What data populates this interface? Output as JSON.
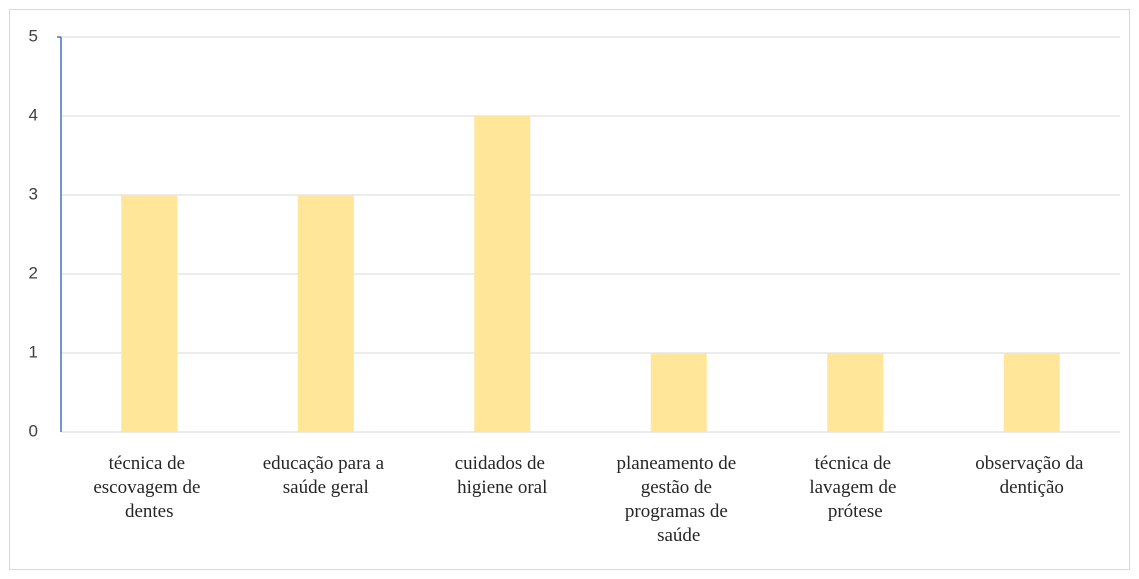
{
  "chart_data": {
    "type": "bar",
    "categories": [
      "técnica de escovagem de dentes",
      "educação para a saúde geral",
      "cuidados de higiene oral",
      "planeamento de gestão de programas de saúde",
      "técnica de lavagem de prótese",
      "observação da dentição"
    ],
    "values": [
      3,
      3,
      4,
      1,
      1,
      1
    ],
    "color": "#ffe699",
    "ylim": [
      0,
      5
    ],
    "yticks": [
      0,
      1,
      2,
      3,
      4,
      5
    ],
    "grid": true
  }
}
